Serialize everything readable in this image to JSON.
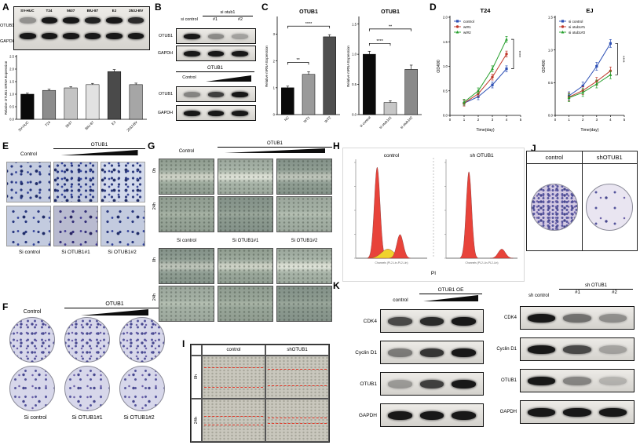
{
  "panelA": {
    "label": "A",
    "blot": {
      "lanes": [
        "SV-HUC",
        "T24",
        "5637",
        "BIU-87",
        "EJ",
        "253J-BV"
      ],
      "rows": [
        "OTUB1",
        "GAPDH"
      ],
      "band_intensities": [
        [
          0.4,
          1,
          1,
          0.95,
          1,
          0.9
        ],
        [
          1,
          1,
          1,
          1,
          1,
          1
        ]
      ]
    }
  },
  "panelB": {
    "label": "B",
    "blot1": {
      "header_control": "si control",
      "header_kd": "si otub1",
      "lane_nums": [
        "#1",
        "#2"
      ],
      "rows": [
        "OTUB1",
        "GAPDH"
      ],
      "band_intensities": [
        [
          1,
          0.42,
          0.3
        ],
        [
          1,
          1,
          1
        ]
      ]
    },
    "blot2": {
      "header": "OTUB1",
      "header_control": "Control",
      "rows": [
        "OTUB1",
        "GAPDH"
      ],
      "band_intensities": [
        [
          0.45,
          0.8,
          1
        ],
        [
          1,
          1,
          1
        ]
      ]
    }
  },
  "panelC": {
    "label": "C"
  },
  "panelD": {
    "label": "D"
  },
  "panelE": {
    "label": "E",
    "header_control": "Control",
    "header_oe": "OTUB1",
    "bottom_labels": [
      "Si control",
      "Si OTUB1#1",
      "Si OTUB1#2"
    ]
  },
  "panelF": {
    "label": "F",
    "header_control": "Control",
    "header_oe": "OTUB1",
    "bottom_labels": [
      "Si control",
      "Si OTUB1#1",
      "Si OTUB1#2"
    ]
  },
  "panelG": {
    "label": "G",
    "group1": {
      "header_control": "Control",
      "header_oe": "OTUB1",
      "row_labels": [
        "0h",
        "24h"
      ]
    },
    "group2": {
      "headers": [
        "Si control",
        "Si OTUB1#1",
        "Si OTUB1#2"
      ],
      "row_labels": [
        "0h",
        "24h"
      ]
    }
  },
  "panelH": {
    "label": "H",
    "xlabel": "PI"
  },
  "panelI": {
    "label": "I",
    "col_headers": [
      "control",
      "shOTUB1"
    ],
    "row_labels": [
      "0h",
      "24h"
    ]
  },
  "panelJ": {
    "label": "J",
    "col_headers": [
      "control",
      "shOTUB1"
    ]
  },
  "panelK": {
    "label": "K",
    "left": {
      "header_control": "control",
      "header_oe": "OTUB1 OE",
      "rows": [
        "CDK4",
        "Cyclin D1",
        "OTUB1",
        "GAPDH"
      ],
      "band_intensities": [
        [
          0.75,
          0.9,
          1
        ],
        [
          0.5,
          0.85,
          1
        ],
        [
          0.35,
          0.8,
          1
        ],
        [
          1,
          1,
          1
        ]
      ]
    },
    "right": {
      "header_control": "sh control",
      "header_kd": "sh OTUB1",
      "lane_nums": [
        "#1",
        "#2"
      ],
      "rows": [
        "CDK4",
        "Cyclin D1",
        "OTUB1",
        "GAPDH"
      ],
      "band_intensities": [
        [
          1,
          0.55,
          0.4
        ],
        [
          1,
          0.75,
          0.3
        ],
        [
          1,
          0.45,
          0.22
        ],
        [
          1,
          1,
          1
        ]
      ]
    }
  },
  "chart_data": [
    {
      "id": "A-qpcr",
      "type": "bar",
      "title": "",
      "ylabel": "Relative OTUB1 mRNA Expression",
      "categories": [
        "SV-HUC",
        "T24",
        "5637",
        "BIU-87",
        "EJ",
        "253J-BV"
      ],
      "values": [
        1.0,
        1.15,
        1.25,
        1.38,
        1.9,
        1.38
      ],
      "errors": [
        0.04,
        0.05,
        0.05,
        0.05,
        0.08,
        0.06
      ],
      "ylim": [
        0,
        2.5
      ],
      "yticks": [
        0,
        0.5,
        1.0,
        1.5,
        2.0,
        2.5
      ],
      "colors": [
        "#0a0a0a",
        "#8c8c8c",
        "#c4c4c4",
        "#e2e2e2",
        "#4a4a4a",
        "#a6a6a6"
      ]
    },
    {
      "id": "C-overexpression",
      "type": "bar",
      "title": "OTUB1",
      "ylabel": "Relative mRNA Expression",
      "categories": [
        "NC",
        "WT1",
        "WT2"
      ],
      "values": [
        1.0,
        1.5,
        2.9
      ],
      "errors": [
        0.06,
        0.1,
        0.08
      ],
      "ylim": [
        0,
        3.6
      ],
      "yticks": [
        0,
        1,
        2,
        3
      ],
      "colors": [
        "#0a0a0a",
        "#9a9a9a",
        "#4f4f4f"
      ],
      "sig": [
        {
          "from": 0,
          "to": 1,
          "label": "**",
          "y": 1.95
        },
        {
          "from": 0,
          "to": 2,
          "label": "****",
          "y": 3.3
        }
      ]
    },
    {
      "id": "C-knockdown",
      "type": "bar",
      "title": "OTUB1",
      "ylabel": "Relative mRNA Expression",
      "categories": [
        "si control",
        "si otub1#1",
        "si otub1#2"
      ],
      "values": [
        1.0,
        0.2,
        0.75
      ],
      "errors": [
        0.05,
        0.03,
        0.07
      ],
      "ylim": [
        0,
        1.6
      ],
      "yticks": [
        0,
        0.5,
        1.0,
        1.5
      ],
      "colors": [
        "#0a0a0a",
        "#c6c6c6",
        "#8a8a8a"
      ],
      "sig": [
        {
          "from": 0,
          "to": 1,
          "label": "****",
          "y": 1.18
        },
        {
          "from": 0,
          "to": 2,
          "label": "**",
          "y": 1.42
        }
      ]
    },
    {
      "id": "D-T24",
      "type": "line",
      "title": "T24",
      "ylabel": "OD490",
      "xlabel": "Time(day)",
      "x": [
        1,
        2,
        3,
        4
      ],
      "xlim": [
        0,
        5
      ],
      "xticks": [
        0,
        1,
        2,
        3,
        4,
        5
      ],
      "ylim": [
        0,
        2.0
      ],
      "yticks": [
        0,
        0.5,
        1.0,
        1.5,
        2.0
      ],
      "series": [
        {
          "name": "control",
          "color": "#2c4fb5",
          "values": [
            0.25,
            0.38,
            0.62,
            0.95
          ]
        },
        {
          "name": "wt#1",
          "color": "#c0392b",
          "values": [
            0.25,
            0.44,
            0.78,
            1.25
          ]
        },
        {
          "name": "wt#2",
          "color": "#27a02e",
          "values": [
            0.27,
            0.5,
            0.95,
            1.55
          ]
        }
      ],
      "error": 0.06,
      "sig": "****"
    },
    {
      "id": "D-EJ",
      "type": "line",
      "title": "EJ",
      "ylabel": "OD490",
      "xlabel": "Time(day)",
      "x": [
        1,
        2,
        3,
        4
      ],
      "xlim": [
        0,
        5
      ],
      "xticks": [
        0,
        1,
        2,
        3,
        4,
        5
      ],
      "ylim": [
        0,
        1.5
      ],
      "yticks": [
        0,
        0.5,
        1.0,
        1.5
      ],
      "series": [
        {
          "name": "si control",
          "color": "#2c4fb5",
          "values": [
            0.3,
            0.45,
            0.75,
            1.1
          ]
        },
        {
          "name": "si otub1#1",
          "color": "#c0392b",
          "values": [
            0.28,
            0.38,
            0.52,
            0.68
          ]
        },
        {
          "name": "si otub1#2",
          "color": "#27a02e",
          "values": [
            0.27,
            0.35,
            0.48,
            0.62
          ]
        }
      ],
      "error": 0.06,
      "sig": "****"
    },
    {
      "id": "H-cellcycle",
      "type": "flow-histogram",
      "xlabel": "PI",
      "plots": [
        {
          "title": "control",
          "axis_caption": "Channels (PL2-Lin-PL2-Lin)",
          "peaks": [
            {
              "center": 0.3,
              "height": 1.0,
              "width": 0.04,
              "color": "#e8433a"
            },
            {
              "center": 0.45,
              "height": 0.1,
              "width": 0.09,
              "color": "#f0d22c"
            },
            {
              "center": 0.62,
              "height": 0.26,
              "width": 0.045,
              "color": "#e8433a"
            }
          ]
        },
        {
          "title": "sh OTUB1",
          "axis_caption": "Channels (PL2-Lin-PL2-Lin)",
          "peaks": [
            {
              "center": 0.32,
              "height": 0.95,
              "width": 0.038,
              "color": "#e8433a"
            },
            {
              "center": 0.78,
              "height": 0.1,
              "width": 0.05,
              "color": "#e8433a"
            }
          ]
        }
      ]
    }
  ]
}
